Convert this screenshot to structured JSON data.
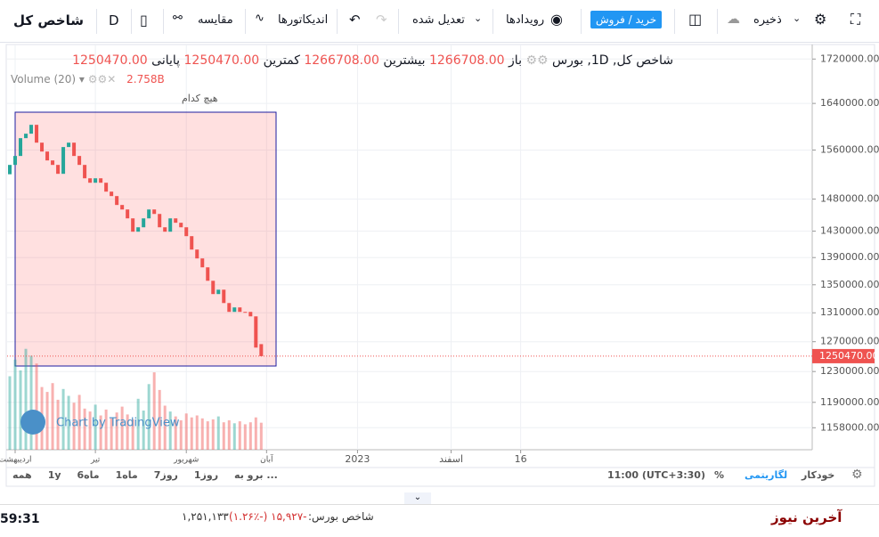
{
  "toolbar": {
    "symbol": "شاخص کل",
    "interval": "D",
    "compare": "مقایسه",
    "indicators": "اندیکاتورها",
    "adjusted": "تعدیل شده",
    "events": "رویدادها",
    "trade": "خرید / فروش",
    "save": "ذخیره"
  },
  "legend": {
    "symbol": "شاخص کل, 1D, بورس",
    "open_label": "باز",
    "open": "1266708.00",
    "high_label": "بیشترین",
    "high": "1266708.00",
    "low_label": "کمترین",
    "low": "1250470.00",
    "close_label": "پایانی",
    "close": "1250470.00",
    "volume_name": "Volume (20)",
    "volume_value": "2.758B",
    "volume_none": "هیچ کدام"
  },
  "watermark": "Chart by TradingView",
  "chart_data": {
    "type": "candlestick",
    "log_scale": true,
    "grid": true,
    "up_color": "#26a69a",
    "down_color": "#ef5350",
    "x": [
      0,
      2,
      4,
      6,
      8,
      10,
      12,
      14,
      16,
      18,
      20,
      22,
      24,
      26,
      28,
      30,
      32,
      34,
      36,
      38,
      40,
      42,
      44,
      46,
      48,
      50,
      52,
      54,
      56,
      58,
      60,
      62,
      64,
      66,
      68,
      70,
      72,
      74,
      76,
      78,
      80,
      82,
      84,
      86,
      88,
      90,
      92,
      94
    ],
    "series": [
      {
        "name": "شاخص کل",
        "open": [
          1520000,
          1535300,
          1550100,
          1580000,
          1587600,
          1602800,
          1572400,
          1557500,
          1542700,
          1535300,
          1520700,
          1565000,
          1572400,
          1550100,
          1535300,
          1513400,
          1506200,
          1513400,
          1506200,
          1491900,
          1484800,
          1470700,
          1463600,
          1449700,
          1429100,
          1435900,
          1449700,
          1463600,
          1456600,
          1435900,
          1429100,
          1449700,
          1442900,
          1435900,
          1422300,
          1402000,
          1388700,
          1375500,
          1355800,
          1336600,
          1342900,
          1323800,
          1311300,
          1317600,
          1311300,
          1311300,
          1305000,
          1266708
        ],
        "close": [
          1535300,
          1550100,
          1580000,
          1587600,
          1602800,
          1572400,
          1557500,
          1542700,
          1535300,
          1520700,
          1565000,
          1572400,
          1550100,
          1535300,
          1513400,
          1506200,
          1513400,
          1506200,
          1491900,
          1484800,
          1470700,
          1463600,
          1449700,
          1429100,
          1435900,
          1449700,
          1463600,
          1456600,
          1435900,
          1429100,
          1449700,
          1442900,
          1435900,
          1422300,
          1402000,
          1388700,
          1375500,
          1355800,
          1336600,
          1342900,
          1323800,
          1311300,
          1317600,
          1311300,
          1311300,
          1305000,
          1262000,
          1250470
        ]
      },
      {
        "name": "Volume (20)",
        "axis": "volume",
        "values": [
          7.5,
          9.2,
          8.1,
          10.3,
          9.6,
          8.8,
          6.4,
          5.9,
          6.8,
          5.1,
          6.2,
          5.5,
          4.8,
          5.6,
          4.2,
          3.9,
          4.6,
          3.5,
          4.1,
          3.2,
          3.8,
          4.4,
          3.6,
          3.1,
          5.2,
          4.0,
          6.7,
          7.9,
          6.1,
          4.5,
          3.9,
          3.4,
          3.0,
          3.7,
          3.3,
          3.5,
          3.2,
          2.9,
          3.1,
          3.4,
          2.8,
          3.0,
          2.7,
          2.9,
          2.6,
          2.8,
          3.3,
          2.758
        ]
      }
    ],
    "xlim": [
      -1,
      300
    ],
    "xticks": [
      {
        "value": 2,
        "label": "اردیبهشت"
      },
      {
        "value": 32,
        "label": "تیر"
      },
      {
        "value": 66,
        "label": "شهریور"
      },
      {
        "value": 96,
        "label": "آبان"
      },
      130,
      165,
      191
    ],
    "xtick_labels_print": [
      null,
      null,
      null,
      null,
      "2023",
      "اسفند",
      "16"
    ],
    "ylim": [
      1131000,
      1747000
    ],
    "yticks": [
      {
        "value": 1158000,
        "label": "1158000.00"
      },
      {
        "value": 1190000,
        "label": "1190000.00"
      },
      {
        "value": 1230000,
        "label": "1230000.00"
      },
      {
        "value": 1270000,
        "label": "1270000.00"
      },
      {
        "value": 1310000,
        "label": "1310000.00"
      },
      {
        "value": 1350000,
        "label": "1350000.00"
      },
      {
        "value": 1390000,
        "label": "1390000.00"
      },
      {
        "value": 1430000,
        "label": "1430000.00"
      },
      {
        "value": 1480000,
        "label": "1480000.00"
      },
      {
        "value": 1560000,
        "label": "1560000.00"
      },
      {
        "value": 1640000,
        "label": "1640000.00"
      },
      {
        "value": 1720000,
        "label": "1720000.00"
      }
    ],
    "last_price_label": "1250470.00"
  },
  "range_bar": {
    "ranges": [
      "همه",
      "1y",
      "6ماه",
      "1ماه",
      "7روز",
      "1روز",
      "برو به ..."
    ],
    "time": "11:00 (UTC+3:30)",
    "percent": "%",
    "log": "لگاریتمی",
    "auto": "خودکار"
  },
  "footer": {
    "clock": "59:31",
    "ticker_label": "شاخص بورس:",
    "ticker_change": "-۱۵,۹۲۷ (-۱.۲۶٪)",
    "ticker_value": "۱,۲۵۱,۱۳۳",
    "news": "آخرین نیوز"
  }
}
